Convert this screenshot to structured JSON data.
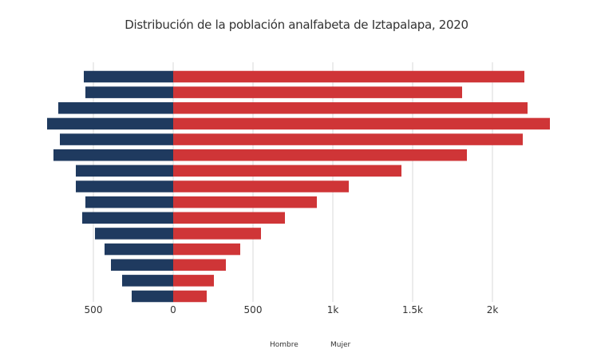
{
  "chart_data": {
    "type": "bar",
    "title": "Distribución de la población analfabeta de Iztapalapa, 2020",
    "xlabel": "",
    "ylabel": "",
    "orientation": "horizontal-population-pyramid",
    "categories": [
      "",
      "",
      "",
      "",
      "",
      "",
      "",
      "",
      "",
      "",
      "",
      "",
      "",
      "",
      ""
    ],
    "series": [
      {
        "name": "Hombre",
        "color": "#1f3a5f",
        "values": [
          560,
          550,
          720,
          790,
          710,
          750,
          610,
          610,
          550,
          570,
          490,
          430,
          390,
          320,
          260
        ]
      },
      {
        "name": "Mujer",
        "color": "#cf3537",
        "values": [
          2200,
          1810,
          2220,
          2360,
          2190,
          1840,
          1430,
          1100,
          900,
          700,
          550,
          420,
          330,
          255,
          210
        ]
      }
    ],
    "xlim": [
      -800,
      2400
    ],
    "x_ticks": [
      -500,
      0,
      500,
      1000,
      1500,
      2000
    ],
    "x_tick_labels": [
      "500",
      "0",
      "500",
      "1k",
      "1.5k",
      "2k"
    ],
    "grid": "vertical",
    "legend": "bottom-center"
  }
}
